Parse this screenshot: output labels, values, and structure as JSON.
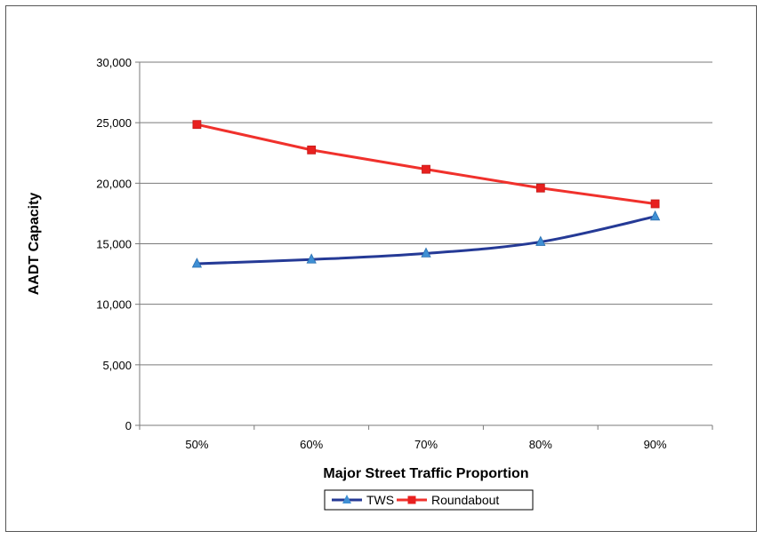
{
  "chart_data": {
    "type": "line",
    "title": "",
    "xlabel": "Major Street Traffic Proportion",
    "ylabel": "AADT Capacity",
    "categories": [
      "50%",
      "60%",
      "70%",
      "80%",
      "90%"
    ],
    "ylim": [
      0,
      30000
    ],
    "yticks": [
      0,
      5000,
      10000,
      15000,
      20000,
      25000,
      30000
    ],
    "ytick_labels": [
      "0",
      "5,000",
      "10,000",
      "15,000",
      "20,000",
      "25,000",
      "30,000"
    ],
    "grid": "horizontal",
    "legend_position": "bottom",
    "series": [
      {
        "name": "TWS",
        "marker": "triangle",
        "color": "#253a96",
        "marker_color": "#3f8fd4",
        "values": [
          13350,
          13700,
          14200,
          15150,
          17250
        ]
      },
      {
        "name": "Roundabout",
        "marker": "square",
        "color": "#f0312c",
        "marker_color": "#e8201f",
        "values": [
          24850,
          22750,
          21150,
          19600,
          18300
        ]
      }
    ]
  }
}
